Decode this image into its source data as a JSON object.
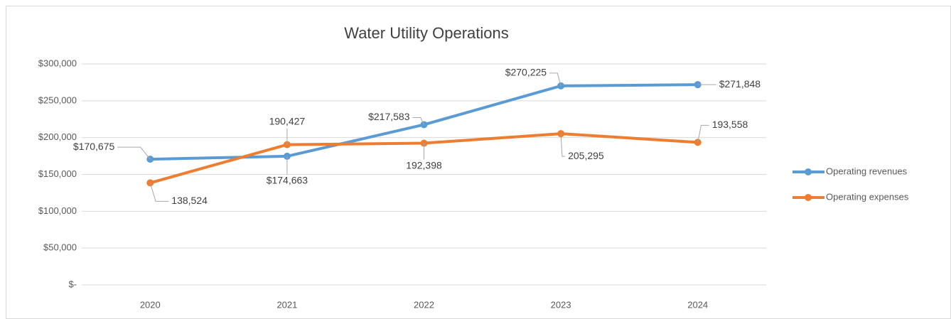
{
  "chart_data": {
    "type": "line",
    "title": "Water Utility Operations",
    "categories": [
      "2020",
      "2021",
      "2022",
      "2023",
      "2024"
    ],
    "series": [
      {
        "name": "Operating revenues",
        "color": "#5b9bd5",
        "values": [
          170675,
          174663,
          217583,
          270225,
          271848
        ],
        "value_labels": [
          "$170,675",
          "$174,663",
          "$217,583",
          "$270,225",
          "$271,848"
        ]
      },
      {
        "name": "Operating expenses",
        "color": "#ed7d31",
        "values": [
          138524,
          190427,
          192398,
          205295,
          193558
        ],
        "value_labels": [
          "138,524",
          "190,427",
          "192,398",
          "205,295",
          "193,558"
        ]
      }
    ],
    "ylim": [
      0,
      300000
    ],
    "yticks": [
      {
        "value": 0,
        "label": "$-"
      },
      {
        "value": 50000,
        "label": "$50,000"
      },
      {
        "value": 100000,
        "label": "$100,000"
      },
      {
        "value": 150000,
        "label": "$150,000"
      },
      {
        "value": 200000,
        "label": "$200,000"
      },
      {
        "value": 250000,
        "label": "$250,000"
      },
      {
        "value": 300000,
        "label": "$300,000"
      }
    ],
    "grid": true,
    "legend": "right"
  }
}
